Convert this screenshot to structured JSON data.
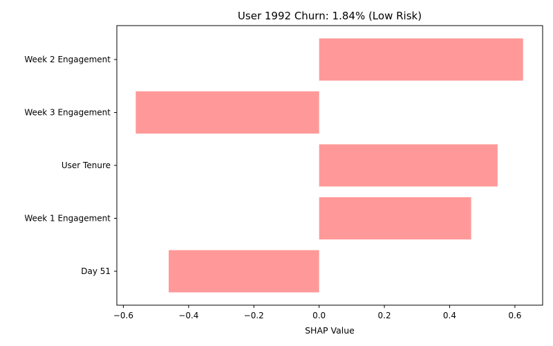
{
  "chart_data": {
    "type": "bar",
    "orientation": "horizontal",
    "title": "User 1992 Churn: 1.84% (Low Risk)",
    "xlabel": "SHAP Value",
    "ylabel": "",
    "categories": [
      "Week 2 Engagement",
      "Week 3 Engagement",
      "User Tenure",
      "Week 1 Engagement",
      "Day 51"
    ],
    "values": [
      0.625,
      -0.562,
      0.547,
      0.466,
      -0.461
    ],
    "xlim": [
      -0.62,
      0.685
    ],
    "xticks": [
      -0.6,
      -0.4,
      -0.2,
      0.0,
      0.2,
      0.4,
      0.6
    ],
    "xtick_labels": [
      "−0.6",
      "−0.4",
      "−0.2",
      "0.0",
      "0.2",
      "0.4",
      "0.6"
    ],
    "bar_color": "#ff9999",
    "grid": false,
    "legend": "none"
  }
}
